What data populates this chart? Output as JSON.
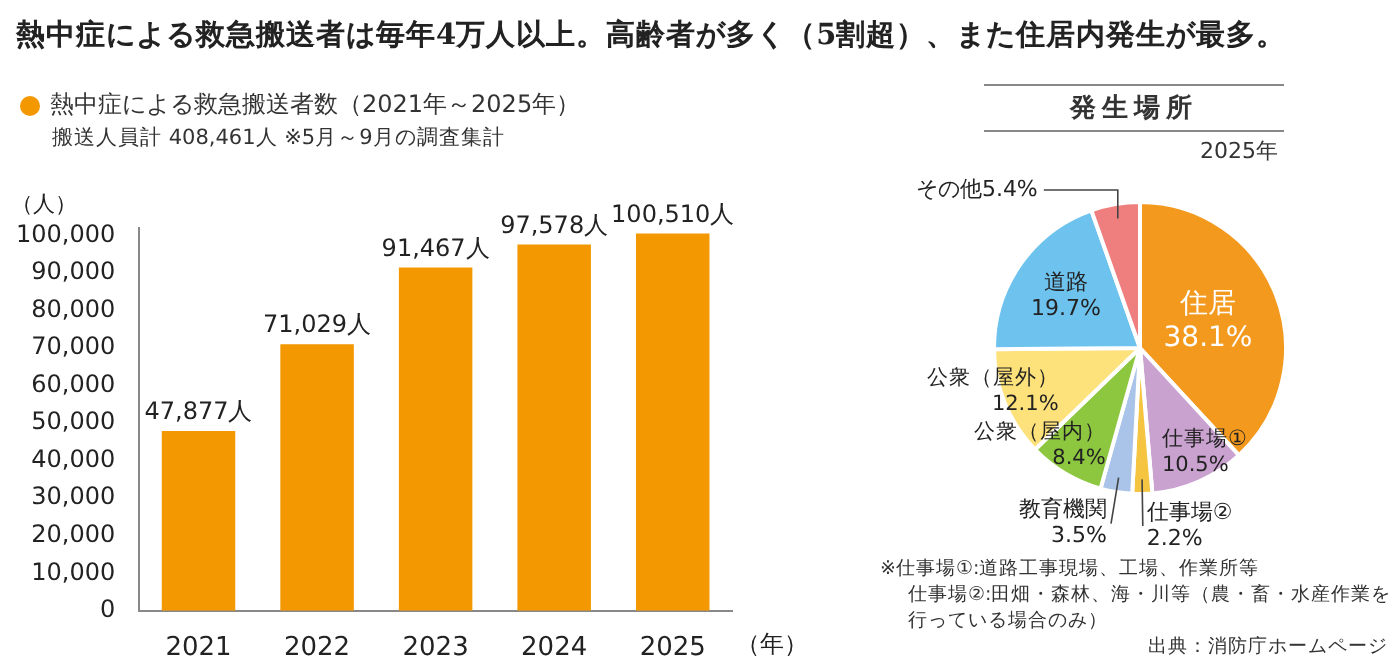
{
  "chart_data": [
    {
      "type": "bar",
      "title": "熱中症による救急搬送者は毎年4万人以上。高齢者が多く（5割超）、また住居内発生が最多。",
      "subtitle": "熱中症による救急搬送者数（2021年～2025年）",
      "annotations": [
        "搬送人員計 408,461人 ※5月～9月の調査集計"
      ],
      "xlabel": "（年）",
      "ylabel": "（人）",
      "categories": [
        "2021",
        "2022",
        "2023",
        "2024",
        "2025"
      ],
      "values": [
        47877,
        71029,
        91467,
        97578,
        100510
      ],
      "value_labels": [
        "47,877人",
        "71,029人",
        "91,467人",
        "97,578人",
        "100,510人"
      ],
      "color": "#f39800",
      "ylim": [
        0,
        102000
      ],
      "yticks": [
        {
          "value": 0,
          "label": "0"
        },
        {
          "value": 10000,
          "label": "10,000"
        },
        {
          "value": 20000,
          "label": "20,000"
        },
        {
          "value": 30000,
          "label": "30,000"
        },
        {
          "value": 40000,
          "label": "40,000"
        },
        {
          "value": 50000,
          "label": "50,000"
        },
        {
          "value": 60000,
          "label": "60,000"
        },
        {
          "value": 70000,
          "label": "70,000"
        },
        {
          "value": 80000,
          "label": "80,000"
        },
        {
          "value": 90000,
          "label": "90,000"
        },
        {
          "value": 100000,
          "label": "100,000"
        }
      ],
      "grid": false,
      "legend": false
    },
    {
      "type": "pie",
      "title": "発生場所",
      "subtitle": "2025年",
      "categories": [
        "住居",
        "仕事場①",
        "仕事場②",
        "教育機関",
        "公衆（屋内）",
        "公衆（屋外）",
        "道路",
        "その他"
      ],
      "values": [
        38.1,
        10.5,
        2.2,
        3.5,
        8.4,
        12.1,
        19.7,
        5.4
      ],
      "value_labels": [
        "38.1%",
        "10.5%",
        "2.2%",
        "3.5%",
        "8.4%",
        "12.1%",
        "19.7%",
        "5.4%"
      ],
      "colors": [
        "#f39a1e",
        "#c9a2d0",
        "#f5c542",
        "#a9c4e8",
        "#8dc63f",
        "#fde17a",
        "#6ec3ee",
        "#ef7f7f"
      ],
      "legend": false,
      "annotations": [
        "※仕事場①:道路工事現場、工場、作業所等",
        "仕事場②:田畑・森林、海・川等（農・畜・水産作業を行っている場合のみ）",
        "出典：消防庁ホームページ"
      ]
    }
  ]
}
